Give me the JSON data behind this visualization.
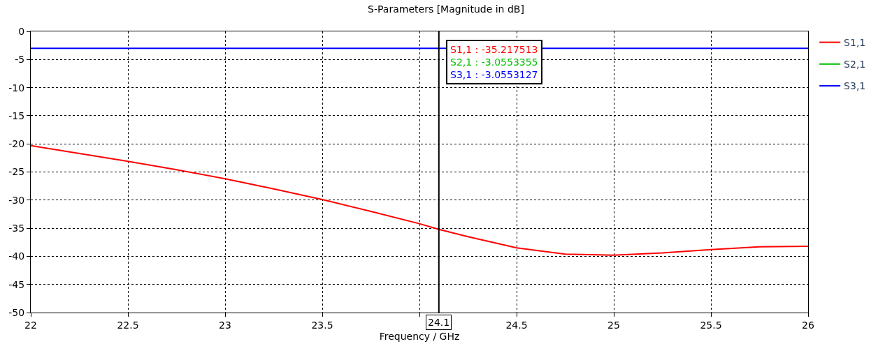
{
  "chart_data": {
    "type": "line",
    "title": "S-Parameters [Magnitude in dB]",
    "xlabel": "Frequency / GHz",
    "x": [
      22,
      22.25,
      22.5,
      22.75,
      23,
      23.25,
      23.5,
      23.75,
      24,
      24.1,
      24.25,
      24.5,
      24.75,
      25,
      25.25,
      25.5,
      25.75,
      26
    ],
    "series": [
      {
        "name": "S1,1",
        "color": "#ff0000",
        "values": [
          -20.3,
          -21.7,
          -23.1,
          -24.6,
          -26.2,
          -28.0,
          -29.9,
          -32.0,
          -34.2,
          -35.2,
          -36.5,
          -38.5,
          -39.6,
          -39.8,
          -39.4,
          -38.8,
          -38.3,
          -38.2
        ]
      },
      {
        "name": "S2,1",
        "color": "#00c000",
        "values": [
          null,
          null,
          null,
          null,
          null,
          null,
          null,
          null,
          null,
          null,
          null,
          null,
          null,
          null,
          null,
          null,
          null,
          null
        ]
      },
      {
        "name": "S3,1",
        "color": "#0000ff",
        "x": [
          22,
          26
        ],
        "values": [
          -3,
          -3
        ]
      }
    ],
    "xlim": [
      22,
      26
    ],
    "xticks": [
      22,
      22.5,
      23,
      23.5,
      {
        "value": 24,
        "label": null
      },
      24.5,
      25,
      25.5,
      26
    ],
    "ylim": [
      -50,
      0
    ],
    "yticks": [
      -50,
      -45,
      -40,
      -35,
      -30,
      -25,
      -20,
      -15,
      -10,
      -5,
      0
    ],
    "ref_lines": [
      {
        "axis": "x",
        "value": 24.1,
        "label": "24.1",
        "color": "#000000"
      }
    ],
    "annotations": [
      "S1,1 : -35.217513",
      "S2,1 : -3.0553355",
      "S3,1 : -3.0553127"
    ],
    "grid": true,
    "legend": "top right",
    "marker": "none",
    "line_style": "solid"
  }
}
